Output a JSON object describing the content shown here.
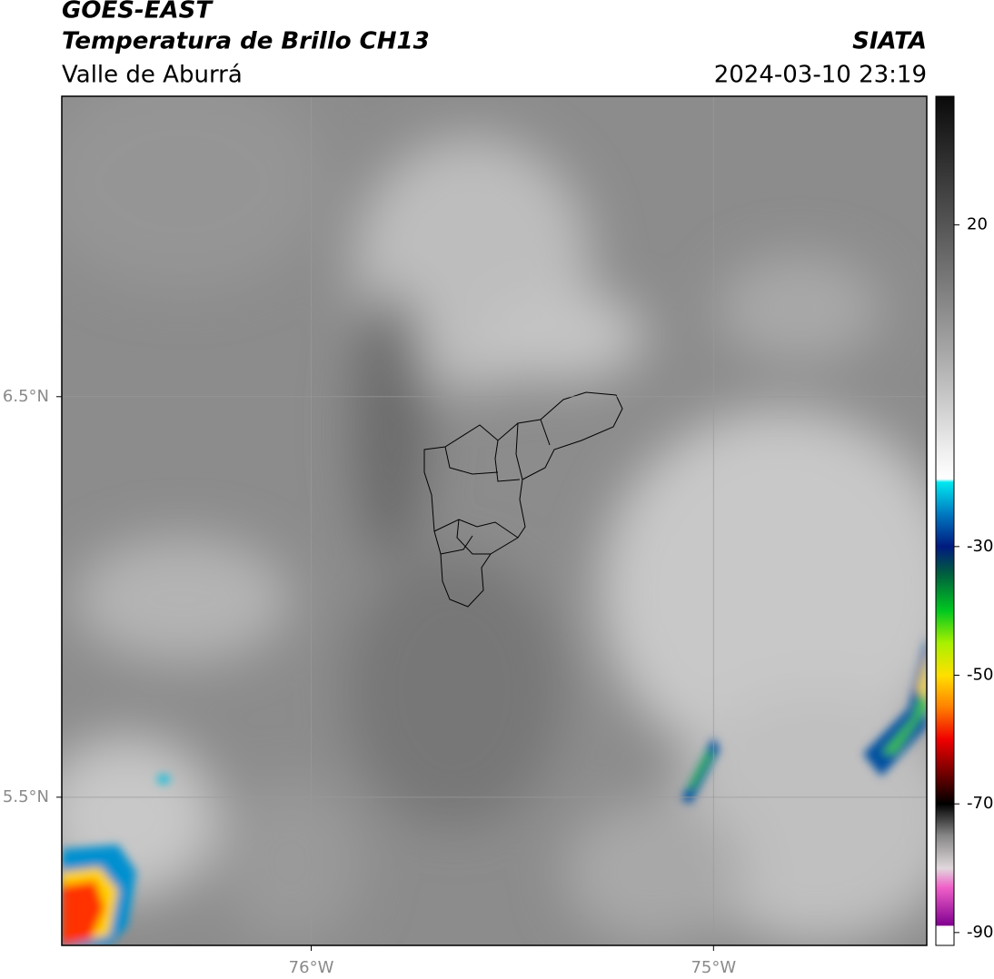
{
  "header": {
    "title": "GOES-EAST",
    "subtitle": "Temperatura de Brillo CH13",
    "region": "Valle de Aburrá",
    "source": "SIATA",
    "datetime": "2024-03-10 23:19"
  },
  "map": {
    "xlim": [
      -76.62,
      -74.47
    ],
    "ylim": [
      5.13,
      7.25
    ],
    "xticks": [
      {
        "value": -76,
        "label": "76°W"
      },
      {
        "value": -75,
        "label": "75°W"
      }
    ],
    "yticks": [
      {
        "value": 6.5,
        "label": "6.5°N"
      },
      {
        "value": 5.5,
        "label": "5.5°N"
      }
    ],
    "grid": true
  },
  "colorbar": {
    "clim": [
      -92,
      40
    ],
    "ticks": [
      20,
      -30,
      -50,
      -70,
      -90
    ],
    "colormap": [
      {
        "value": 40,
        "color": "#0a0a0a"
      },
      {
        "value": 20,
        "color": "#555555"
      },
      {
        "value": 0,
        "color": "#a8a8a8"
      },
      {
        "value": -15,
        "color": "#eeeeee"
      },
      {
        "value": -19.5,
        "color": "#ffffff"
      },
      {
        "value": -20,
        "color": "#00e8f0"
      },
      {
        "value": -25,
        "color": "#0078c0"
      },
      {
        "value": -30,
        "color": "#001a80"
      },
      {
        "value": -34,
        "color": "#005a40"
      },
      {
        "value": -40,
        "color": "#00c820"
      },
      {
        "value": -45,
        "color": "#a8f000"
      },
      {
        "value": -50,
        "color": "#ffe000"
      },
      {
        "value": -55,
        "color": "#ff8000"
      },
      {
        "value": -60,
        "color": "#f00000"
      },
      {
        "value": -66,
        "color": "#600000"
      },
      {
        "value": -70,
        "color": "#000000"
      },
      {
        "value": -75,
        "color": "#888888"
      },
      {
        "value": -80,
        "color": "#e0d8dc"
      },
      {
        "value": -83,
        "color": "#f060c8"
      },
      {
        "value": -88.9,
        "color": "#800090"
      },
      {
        "value": -89,
        "color": "#ffffff"
      },
      {
        "value": -92,
        "color": "#ffffff"
      }
    ]
  }
}
